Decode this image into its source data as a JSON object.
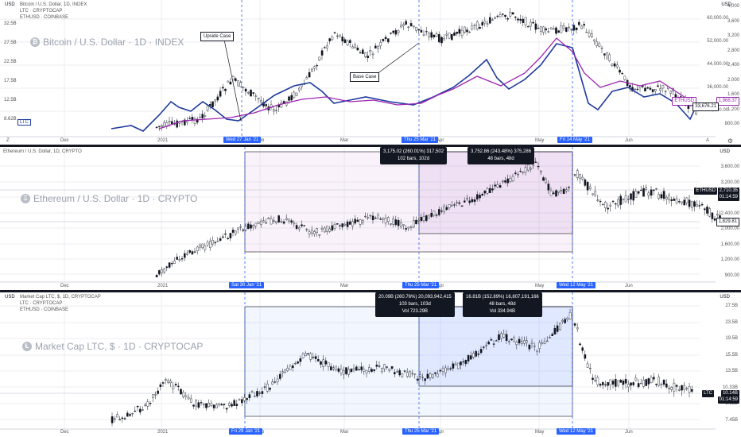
{
  "panes": [
    {
      "id": "btc",
      "legend": [
        "Bitcoin / U.S. Dollar, 1D, INDEX",
        "LTC · CRYPTOCAP",
        "ETHUSD · COINBASE"
      ],
      "watermark": "Bitcoin / U.S. Dollar · 1D · INDEX",
      "coin_symbol": "₿",
      "left_axis": [
        "32.5B",
        "27.5B",
        "22.5B",
        "17.5B",
        "12.5B",
        "8.62B"
      ],
      "left_extra": [
        "USD",
        "LTC"
      ],
      "right_axis": [
        "60,000.00",
        "52,000.00",
        "44,000.00",
        "36,000.00",
        "28,000.00",
        "4,000",
        "3,600",
        "3,200",
        "2,800",
        "2,400",
        "2,000",
        "1,600",
        "1,200",
        "800.00"
      ],
      "time_labels": [
        "Dec",
        "2021",
        "Feb",
        "Mar",
        "Apr",
        "May",
        "Jun"
      ],
      "date_boxes": [
        "Wed 27 Jan '21",
        "Thu 25 Mar '21",
        "Fri 14 May '21"
      ],
      "price_tags": [
        {
          "text": "ETHUSD",
          "color": "#9c27b0"
        },
        {
          "text": "1,968.37",
          "color": "#9c27b0"
        },
        {
          "text": "33,676.21",
          "color": "#131722"
        }
      ],
      "callouts": [
        "Upside Case",
        "Base Case"
      ],
      "currency": "USD"
    },
    {
      "id": "eth",
      "legend": [
        "Ethereum / U.S. Dollar, 1D, CRYPTO"
      ],
      "watermark": "Ethereum / U.S. Dollar · 1D · CRYPTO",
      "coin_symbol": "Ξ",
      "right_axis": [
        "3,600.00",
        "3,200.00",
        "2,800.00",
        "2,400.00",
        "2,000.00",
        "1,600.00",
        "1,200.00",
        "900.00"
      ],
      "time_labels": [
        "Dec",
        "2021",
        "Feb",
        "Mar",
        "Apr",
        "May",
        "Jun"
      ],
      "date_boxes": [
        "Sat 30 Jan '21",
        "Thu 25 Mar '21",
        "Wed 12 May '21"
      ],
      "infoboxes": [
        {
          "line1": "3,175.02 (260.01%) 317,502",
          "line2": "102 bars, 102d"
        },
        {
          "line1": "3,752.86 (243.48%) 375,286",
          "line2": "48 bars, 48d"
        }
      ],
      "price_tags": [
        {
          "text": "ETHUSD",
          "color": "#131722"
        },
        {
          "text": "2,710.35",
          "color": "#131722"
        },
        {
          "text": "01:14:59",
          "color": "#131722"
        },
        {
          "text": "1,829.81",
          "color": "#131722"
        }
      ],
      "currency": "USD"
    },
    {
      "id": "ltc",
      "legend": [
        "Market Cap LTC, $, 1D, CRYPTOCAP",
        "LTC · CRYPTOCAP",
        "ETHUSD · COINBASE"
      ],
      "watermark": "Market Cap LTC, $ · 1D · CRYPTOCAP",
      "coin_symbol": "Ł",
      "right_axis": [
        "27.5B",
        "23.5B",
        "19.5B",
        "15.5B",
        "13.5B",
        "10.33B",
        "8.65B",
        "7.45B"
      ],
      "time_labels": [
        "Dec",
        "2021",
        "Feb",
        "Mar",
        "Apr",
        "May",
        "Jun"
      ],
      "date_boxes": [
        "Fri 29 Jan '21",
        "Thu 25 Mar '21",
        "Wed 12 May '21"
      ],
      "infoboxes": [
        {
          "line1": "20.09B (260.76%) 20,093,942,415",
          "line2": "103 bars, 103d",
          "line3": "Vol 723.29B"
        },
        {
          "line1": "16.81B (152.89%) 16,807,191,166",
          "line2": "48 bars, 48d",
          "line3": "Vol 334.94B"
        }
      ],
      "price_tags": [
        {
          "text": "LTC",
          "color": "#131722"
        },
        {
          "text": "10.14B",
          "color": "#131722"
        },
        {
          "text": "01:14:59",
          "color": "#131722"
        }
      ],
      "currency": "USD",
      "left_label": "USD"
    }
  ],
  "icons": {
    "settings": "gear-icon",
    "auto": "A",
    "log": "L"
  }
}
